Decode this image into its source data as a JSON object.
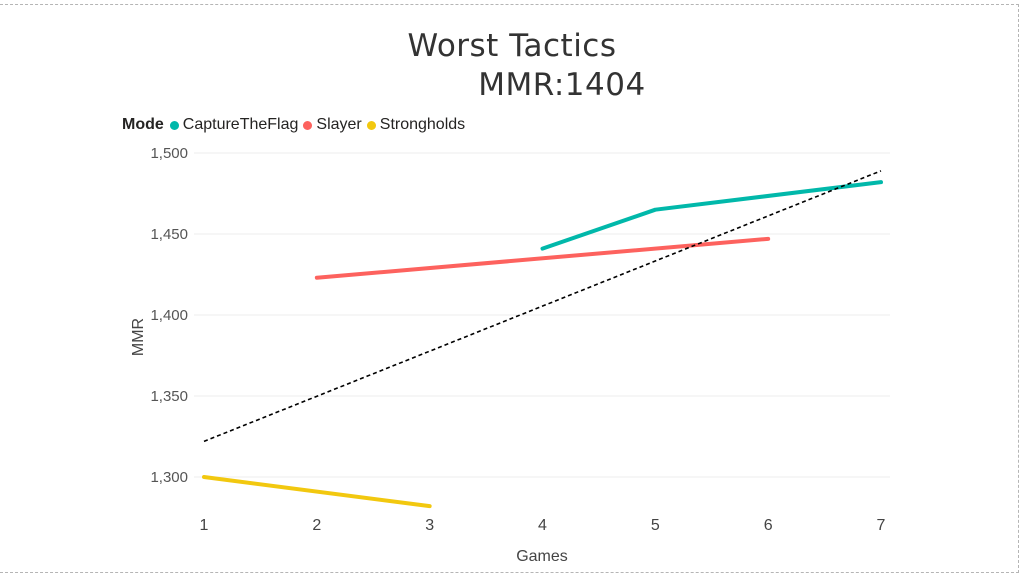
{
  "title": {
    "line1": "Worst Tactics",
    "line2": "MMR:1404"
  },
  "legend": {
    "title": "Mode",
    "items": [
      {
        "label": "CaptureTheFlag",
        "color": "#01B8AA"
      },
      {
        "label": "Slayer",
        "color": "#FD625E"
      },
      {
        "label": "Strongholds",
        "color": "#F2C80F"
      }
    ]
  },
  "axes": {
    "x_title": "Games",
    "y_title": "MMR",
    "x_ticks": [
      "1",
      "2",
      "3",
      "4",
      "5",
      "6",
      "7"
    ],
    "y_ticks": [
      "1,500",
      "1,450",
      "1,400",
      "1,350",
      "1,300"
    ]
  },
  "chart_data": {
    "type": "line",
    "title": "Worst Tactics MMR:1404",
    "xlabel": "Games",
    "ylabel": "MMR",
    "x": [
      1,
      2,
      3,
      4,
      5,
      6,
      7
    ],
    "xlim": [
      1,
      7
    ],
    "ylim": [
      1280,
      1500
    ],
    "y_ticks": [
      1300,
      1350,
      1400,
      1450,
      1500
    ],
    "grid": true,
    "legend_position": "top-left",
    "legend_title": "Mode",
    "series": [
      {
        "name": "CaptureTheFlag",
        "color": "#01B8AA",
        "points": [
          [
            4,
            1441
          ],
          [
            5,
            1465
          ],
          [
            7,
            1482
          ]
        ]
      },
      {
        "name": "Slayer",
        "color": "#FD625E",
        "points": [
          [
            2,
            1423
          ],
          [
            6,
            1447
          ]
        ]
      },
      {
        "name": "Strongholds",
        "color": "#F2C80F",
        "points": [
          [
            1,
            1300
          ],
          [
            3,
            1282
          ]
        ]
      },
      {
        "name": "Trend line",
        "style": "dashed",
        "color": "#000000",
        "points": [
          [
            1,
            1322
          ],
          [
            7,
            1489
          ]
        ]
      }
    ]
  }
}
